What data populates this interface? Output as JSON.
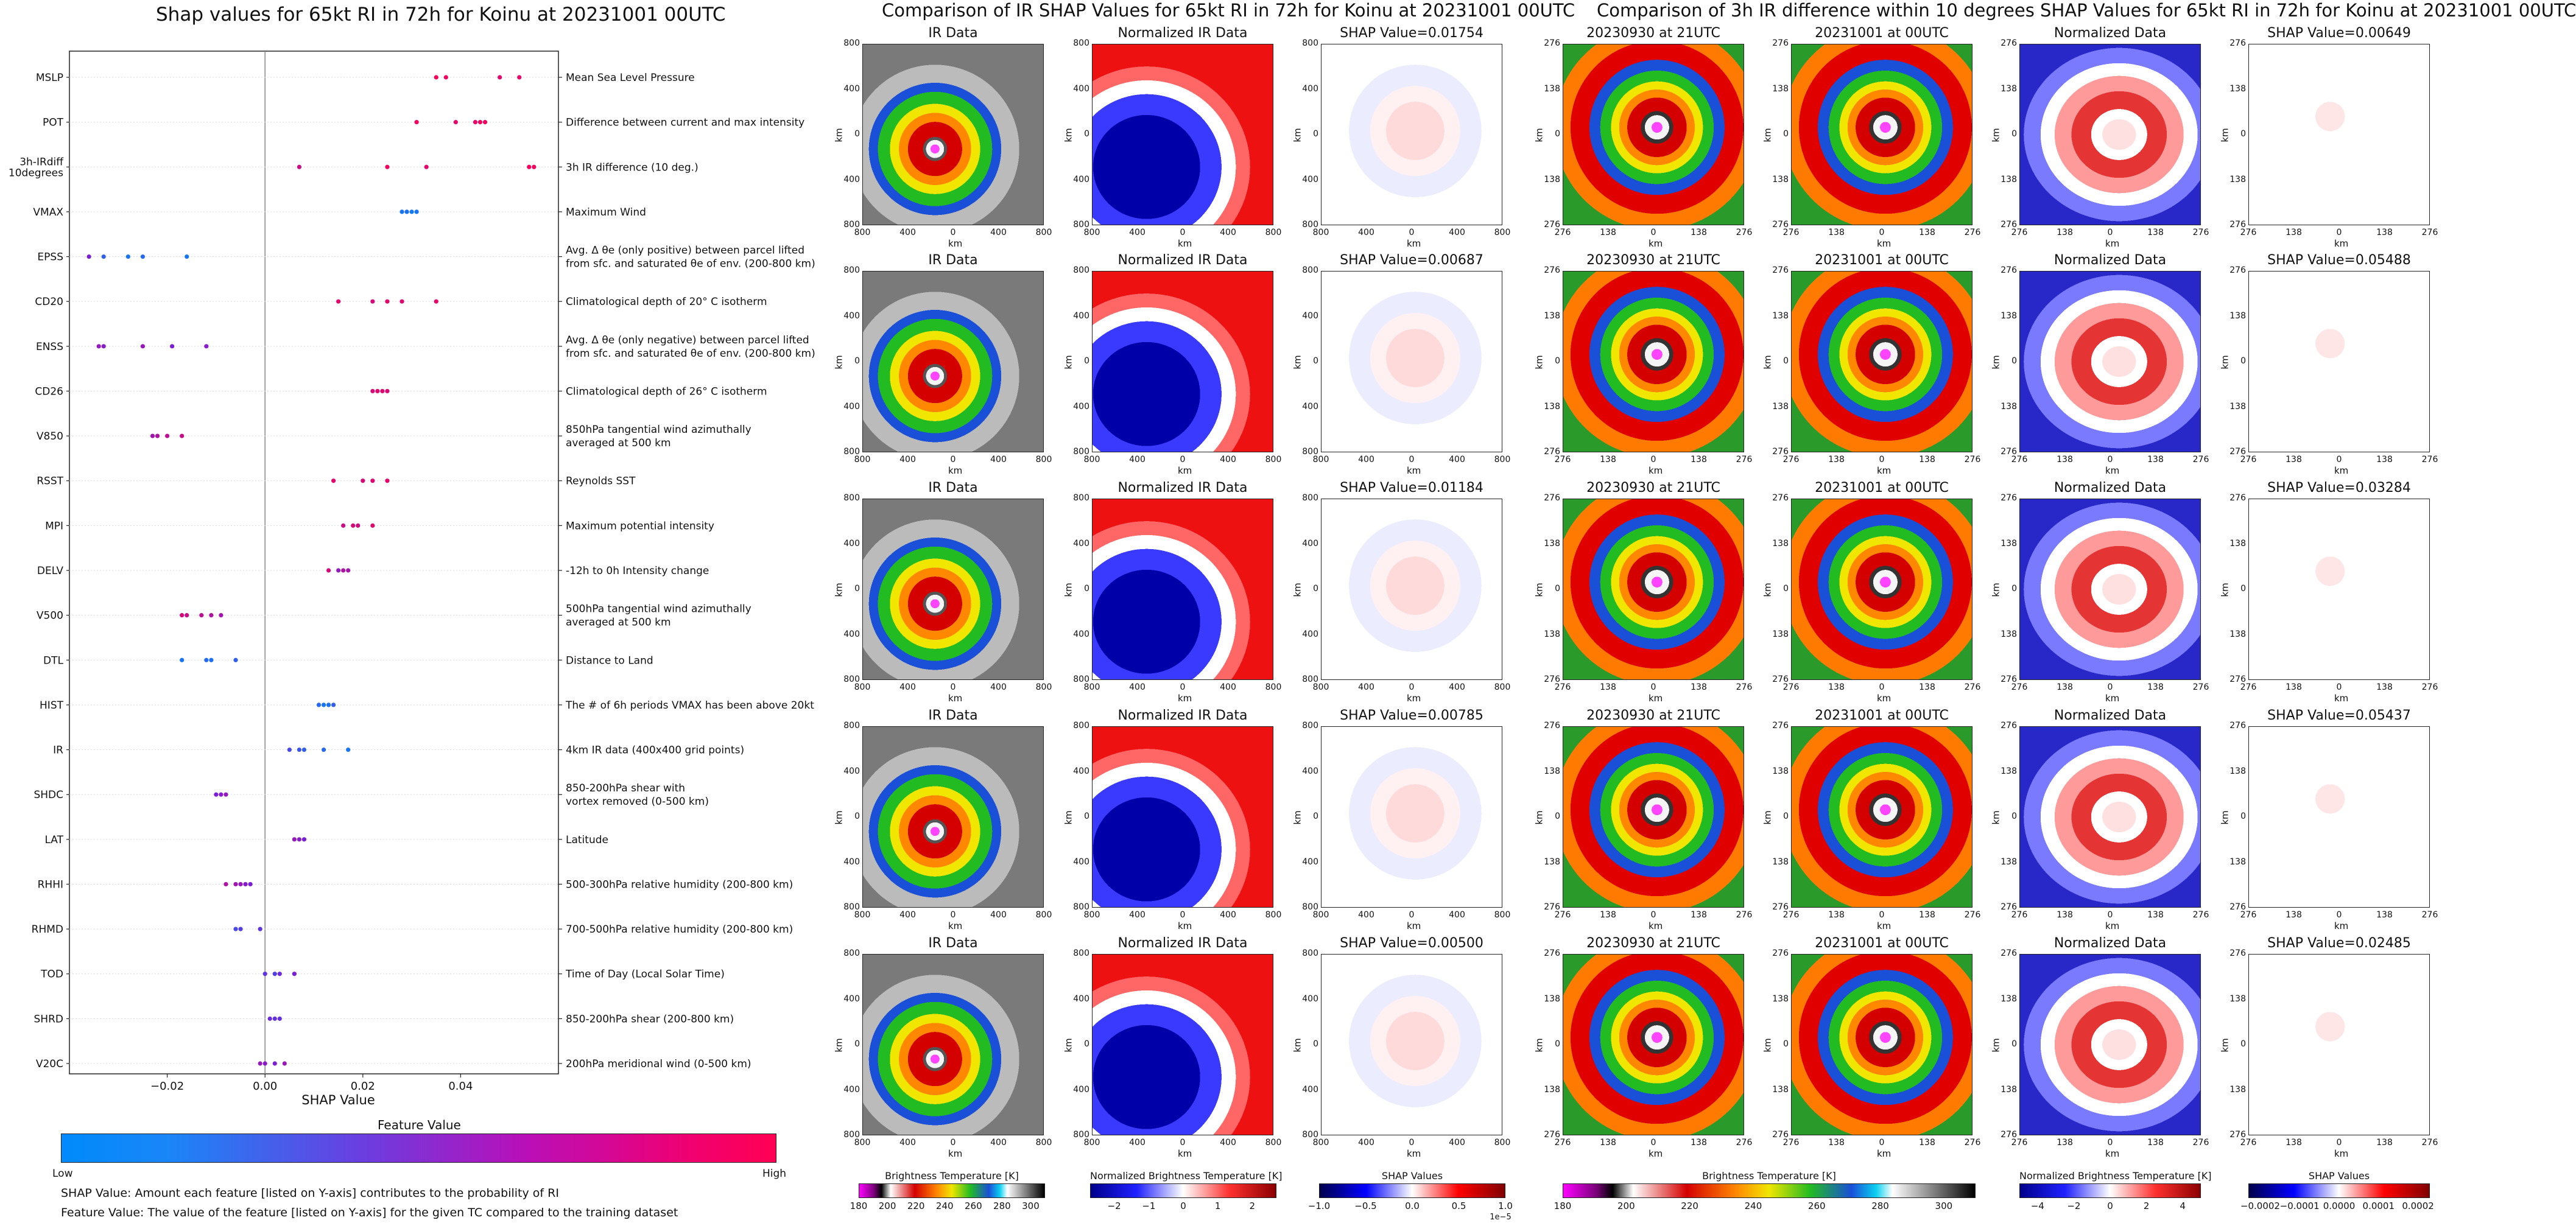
{
  "chart_data": [
    {
      "type": "scatter",
      "title": "Shap values for 65kt RI in 72h for Koinu at 20231001 00UTC",
      "xlabel": "SHAP Value",
      "xlim": [
        -0.04,
        0.06
      ],
      "xticks": [
        "−0.02",
        "0.00",
        "0.02",
        "0.04"
      ],
      "xtick_values": [
        -0.02,
        0.0,
        0.02,
        0.04
      ],
      "colorbar": {
        "title": "Feature Value",
        "low": "Low",
        "high": "High"
      },
      "features": [
        {
          "code": "MSLP",
          "desc": [
            "Mean Sea Level Pressure"
          ],
          "points": [
            [
              0.035,
              0.98
            ],
            [
              0.037,
              0.95
            ],
            [
              0.048,
              0.9
            ],
            [
              0.052,
              0.92
            ]
          ]
        },
        {
          "code": "POT",
          "desc": [
            "Difference between current and max intensity"
          ],
          "points": [
            [
              0.031,
              0.95
            ],
            [
              0.039,
              0.9
            ],
            [
              0.043,
              0.92
            ],
            [
              0.044,
              0.96
            ],
            [
              0.045,
              0.94
            ]
          ]
        },
        {
          "code": "3h-IRdiff\n10degrees",
          "desc": [
            "3h IR difference (10 deg.)"
          ],
          "points": [
            [
              0.007,
              0.8
            ],
            [
              0.025,
              0.95
            ],
            [
              0.033,
              0.9
            ],
            [
              0.054,
              0.97
            ],
            [
              0.055,
              0.96
            ]
          ]
        },
        {
          "code": "VMAX",
          "desc": [
            "Maximum Wind"
          ],
          "points": [
            [
              0.028,
              0.1
            ],
            [
              0.029,
              0.12
            ],
            [
              0.03,
              0.08
            ],
            [
              0.031,
              0.1
            ]
          ]
        },
        {
          "code": "EPSS",
          "desc": [
            "Avg. Δ θe (only positive) between parcel lifted",
            "from sfc. and saturated θe of env. (200-800 km)"
          ],
          "points": [
            [
              -0.036,
              0.5
            ],
            [
              -0.033,
              0.2
            ],
            [
              -0.028,
              0.1
            ],
            [
              -0.025,
              0.15
            ],
            [
              -0.016,
              0.1
            ]
          ]
        },
        {
          "code": "CD20",
          "desc": [
            "Climatological depth of 20° C isotherm"
          ],
          "points": [
            [
              0.015,
              0.9
            ],
            [
              0.022,
              0.85
            ],
            [
              0.025,
              0.9
            ],
            [
              0.028,
              0.88
            ],
            [
              0.035,
              0.92
            ]
          ]
        },
        {
          "code": "ENSS",
          "desc": [
            "Avg. Δ θe (only negative) between parcel lifted",
            "from sfc. and saturated θe of env. (200-800 km)"
          ],
          "points": [
            [
              -0.034,
              0.6
            ],
            [
              -0.033,
              0.55
            ],
            [
              -0.025,
              0.6
            ],
            [
              -0.019,
              0.5
            ],
            [
              -0.012,
              0.55
            ]
          ]
        },
        {
          "code": "CD26",
          "desc": [
            "Climatological depth of 26° C isotherm"
          ],
          "points": [
            [
              0.022,
              0.85
            ],
            [
              0.023,
              0.9
            ],
            [
              0.024,
              0.88
            ],
            [
              0.025,
              0.86
            ]
          ]
        },
        {
          "code": "V850",
          "desc": [
            "850hPa tangential wind azimuthally",
            "averaged at 500 km"
          ],
          "points": [
            [
              -0.023,
              0.65
            ],
            [
              -0.022,
              0.7
            ],
            [
              -0.02,
              0.75
            ],
            [
              -0.017,
              0.8
            ]
          ]
        },
        {
          "code": "RSST",
          "desc": [
            "Reynolds SST"
          ],
          "points": [
            [
              0.014,
              0.9
            ],
            [
              0.02,
              0.85
            ],
            [
              0.022,
              0.88
            ],
            [
              0.025,
              0.9
            ]
          ]
        },
        {
          "code": "MPI",
          "desc": [
            "Maximum potential intensity"
          ],
          "points": [
            [
              0.016,
              0.8
            ],
            [
              0.018,
              0.85
            ],
            [
              0.019,
              0.82
            ],
            [
              0.022,
              0.88
            ]
          ]
        },
        {
          "code": "DELV",
          "desc": [
            "-12h to 0h Intensity change"
          ],
          "points": [
            [
              0.013,
              0.85
            ],
            [
              0.015,
              0.6
            ],
            [
              0.016,
              0.7
            ],
            [
              0.017,
              0.65
            ]
          ]
        },
        {
          "code": "V500",
          "desc": [
            "500hPa tangential wind azimuthally",
            "averaged at 500 km"
          ],
          "points": [
            [
              -0.017,
              0.85
            ],
            [
              -0.016,
              0.8
            ],
            [
              -0.013,
              0.75
            ],
            [
              -0.011,
              0.7
            ],
            [
              -0.009,
              0.65
            ]
          ]
        },
        {
          "code": "DTL",
          "desc": [
            "Distance to Land"
          ],
          "points": [
            [
              -0.017,
              0.1
            ],
            [
              -0.012,
              0.15
            ],
            [
              -0.011,
              0.12
            ],
            [
              -0.006,
              0.2
            ]
          ]
        },
        {
          "code": "HIST",
          "desc": [
            "The # of 6h periods VMAX has been above 20kt"
          ],
          "points": [
            [
              0.011,
              0.15
            ],
            [
              0.012,
              0.1
            ],
            [
              0.013,
              0.12
            ],
            [
              0.014,
              0.2
            ]
          ]
        },
        {
          "code": "IR",
          "desc": [
            "4km IR data (400x400 grid points)"
          ],
          "points": [
            [
              0.005,
              0.3
            ],
            [
              0.007,
              0.25
            ],
            [
              0.008,
              0.2
            ],
            [
              0.012,
              0.15
            ],
            [
              0.017,
              0.1
            ]
          ]
        },
        {
          "code": "SHDC",
          "desc": [
            "850-200hPa shear with",
            "vortex removed (0-500 km)"
          ],
          "points": [
            [
              -0.01,
              0.5
            ],
            [
              -0.009,
              0.55
            ],
            [
              -0.008,
              0.6
            ]
          ]
        },
        {
          "code": "LAT",
          "desc": [
            "Latitude"
          ],
          "points": [
            [
              0.006,
              0.6
            ],
            [
              0.007,
              0.55
            ],
            [
              0.008,
              0.5
            ]
          ]
        },
        {
          "code": "RHHI",
          "desc": [
            "500-300hPa relative humidity (200-800 km)"
          ],
          "points": [
            [
              -0.008,
              0.7
            ],
            [
              -0.006,
              0.65
            ],
            [
              -0.005,
              0.6
            ],
            [
              -0.004,
              0.55
            ],
            [
              -0.003,
              0.5
            ]
          ]
        },
        {
          "code": "RHMD",
          "desc": [
            "700-500hPa relative humidity (200-800 km)"
          ],
          "points": [
            [
              -0.006,
              0.3
            ],
            [
              -0.005,
              0.35
            ],
            [
              -0.001,
              0.4
            ]
          ]
        },
        {
          "code": "TOD",
          "desc": [
            "Time of Day (Local Solar Time)"
          ],
          "points": [
            [
              0.0,
              0.4
            ],
            [
              0.002,
              0.35
            ],
            [
              0.003,
              0.45
            ],
            [
              0.006,
              0.5
            ]
          ]
        },
        {
          "code": "SHRD",
          "desc": [
            "850-200hPa shear (200-800 km)"
          ],
          "points": [
            [
              0.001,
              0.45
            ],
            [
              0.002,
              0.4
            ],
            [
              0.003,
              0.42
            ]
          ]
        },
        {
          "code": "V20C",
          "desc": [
            "200hPa meridional wind (0-500 km)"
          ],
          "points": [
            [
              -0.001,
              0.6
            ],
            [
              0.0,
              0.55
            ],
            [
              0.002,
              0.5
            ],
            [
              0.004,
              0.62
            ]
          ]
        }
      ]
    },
    {
      "type": "heatmap",
      "title": "Comparison of IR SHAP Values for 65kt RI in 72h for Koinu at 20231001 00UTC",
      "columns": [
        "IR Data",
        "Normalized IR Data"
      ],
      "shap_prefix": "SHAP Value=",
      "shap_values": [
        "0.01754",
        "0.00687",
        "0.01184",
        "0.00785",
        "0.00500"
      ],
      "axis_label": "km",
      "x_ticks": [
        "800",
        "400",
        "0",
        "400",
        "800"
      ],
      "y_ticks": [
        "800",
        "400",
        "0",
        "400",
        "800"
      ],
      "colorbars": [
        {
          "label": "Brightness Temperature [K]",
          "ticks": [
            "180",
            "200",
            "220",
            "240",
            "260",
            "280",
            "300"
          ],
          "min": 180,
          "max": 310
        },
        {
          "label": "Normalized Brightness Temperature [K]",
          "ticks": [
            "−2",
            "−1",
            "0",
            "1",
            "2"
          ],
          "min": -2.7,
          "max": 2.7
        },
        {
          "label": "SHAP Values",
          "ticks": [
            "−1.0",
            "−0.5",
            "0.0",
            "0.5",
            "1.0"
          ],
          "min": -1.0,
          "max": 1.0,
          "offset": "1e−5"
        }
      ]
    },
    {
      "type": "heatmap",
      "title": "Comparison of 3h IR difference within 10 degrees SHAP Values for 65kt RI in 72h for Koinu at 20231001 00UTC",
      "columns": [
        "20230930 at 21UTC",
        "20231001 at 00UTC",
        "Normalized Data"
      ],
      "shap_prefix": "SHAP Value=",
      "shap_values": [
        "0.00649",
        "0.05488",
        "0.03284",
        "0.05437",
        "0.02485"
      ],
      "axis_label": "km",
      "x_ticks": [
        "276",
        "138",
        "0",
        "138",
        "276"
      ],
      "y_ticks": [
        "276",
        "138",
        "0",
        "138",
        "276"
      ],
      "colorbars": [
        {
          "label": "Brightness Temperature [K]",
          "ticks": [
            "180",
            "200",
            "220",
            "240",
            "260",
            "280",
            "300"
          ],
          "min": 180,
          "max": 310
        },
        {
          "label": "Normalized Brightness Temperature [K]",
          "ticks": [
            "−4",
            "−2",
            "0",
            "2",
            "4"
          ],
          "min": -5,
          "max": 5
        },
        {
          "label": "SHAP Values",
          "ticks": [
            "−0.0002",
            "−0.0001",
            "0.0000",
            "0.0001",
            "0.0002"
          ],
          "min": -0.00023,
          "max": 0.00023
        }
      ]
    }
  ],
  "notes": [
    "SHAP Value: Amount each feature [listed on Y-axis] contributes to the probability of RI",
    "Feature Value: The value of the feature [listed on Y-axis] for the given TC compared to the training dataset"
  ],
  "colors": {
    "low": "#008afb",
    "mid": "#7a1fd6",
    "high": "#ff0053",
    "seismic_neg": "#0000cc",
    "seismic_pos": "#cc0000",
    "norm_neg": "#0000a8",
    "norm_pos": "#ee1111"
  }
}
